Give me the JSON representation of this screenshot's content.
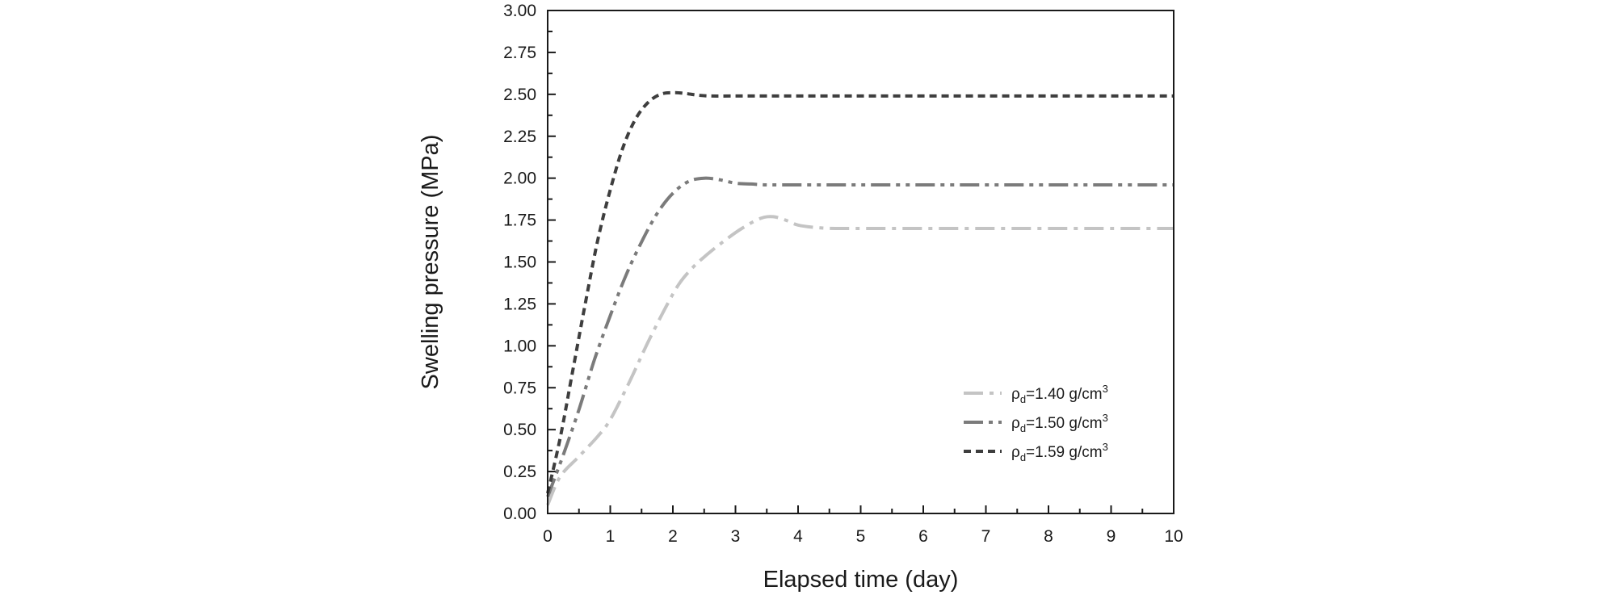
{
  "chart_data": {
    "type": "line",
    "xlabel": "Elapsed time (day)",
    "ylabel": "Swelling pressure (MPa)",
    "xlim": [
      0,
      10
    ],
    "ylim": [
      0,
      3
    ],
    "xticks": [
      "0",
      "1",
      "2",
      "3",
      "4",
      "5",
      "6",
      "7",
      "8",
      "9",
      "10"
    ],
    "yticks": [
      "0.00",
      "0.25",
      "0.50",
      "0.75",
      "1.00",
      "1.25",
      "1.50",
      "1.75",
      "2.00",
      "2.25",
      "2.50",
      "2.75",
      "3.00"
    ],
    "grid": false,
    "legend_position": "lower-right",
    "series": [
      {
        "name": "ρd=1.40 g/cm3",
        "legend": {
          "symbol": "ρ",
          "sub": "d",
          "mid": "=1.40 g/cm",
          "sup": "3"
        },
        "color": "#c4c4c4",
        "dash": "dash-dot",
        "x": [
          0,
          0.2,
          0.5,
          0.8,
          1.0,
          1.3,
          1.6,
          1.9,
          2.1,
          2.3,
          2.5,
          2.8,
          3.1,
          3.4,
          3.6,
          3.8,
          4.0,
          4.3,
          4.6,
          5,
          6,
          7,
          8,
          9,
          10
        ],
        "y": [
          0.05,
          0.22,
          0.34,
          0.46,
          0.56,
          0.78,
          1.02,
          1.24,
          1.37,
          1.46,
          1.53,
          1.62,
          1.7,
          1.76,
          1.77,
          1.75,
          1.72,
          1.705,
          1.7,
          1.7,
          1.7,
          1.7,
          1.7,
          1.7,
          1.7
        ]
      },
      {
        "name": "ρd=1.50 g/cm3",
        "legend": {
          "symbol": "ρ",
          "sub": "d",
          "mid": "=1.50 g/cm",
          "sup": "3"
        },
        "color": "#7b7b7b",
        "dash": "dash-dot-dot",
        "x": [
          0,
          0.25,
          0.5,
          0.75,
          1.0,
          1.25,
          1.5,
          1.75,
          2.0,
          2.25,
          2.5,
          2.75,
          3.0,
          3.25,
          3.5,
          4.0,
          4.5,
          5,
          6,
          7,
          8,
          9,
          10
        ],
        "y": [
          0.1,
          0.35,
          0.62,
          0.92,
          1.18,
          1.42,
          1.62,
          1.79,
          1.91,
          1.98,
          2.0,
          1.99,
          1.97,
          1.965,
          1.96,
          1.96,
          1.96,
          1.96,
          1.96,
          1.96,
          1.96,
          1.96,
          1.96
        ]
      },
      {
        "name": "ρd=1.59 g/cm3",
        "legend": {
          "symbol": "ρ",
          "sub": "d",
          "mid": "=1.59 g/cm",
          "sup": "3"
        },
        "color": "#3e3e3e",
        "dash": "dashed",
        "x": [
          0,
          0.2,
          0.4,
          0.6,
          0.8,
          1.0,
          1.2,
          1.4,
          1.6,
          1.8,
          2.0,
          2.2,
          2.4,
          2.6,
          3.0,
          4,
          5,
          6,
          7,
          8,
          9,
          10
        ],
        "y": [
          0.12,
          0.45,
          0.85,
          1.25,
          1.63,
          1.93,
          2.18,
          2.35,
          2.45,
          2.5,
          2.51,
          2.505,
          2.495,
          2.49,
          2.49,
          2.49,
          2.49,
          2.49,
          2.49,
          2.49,
          2.49,
          2.49
        ]
      }
    ]
  }
}
